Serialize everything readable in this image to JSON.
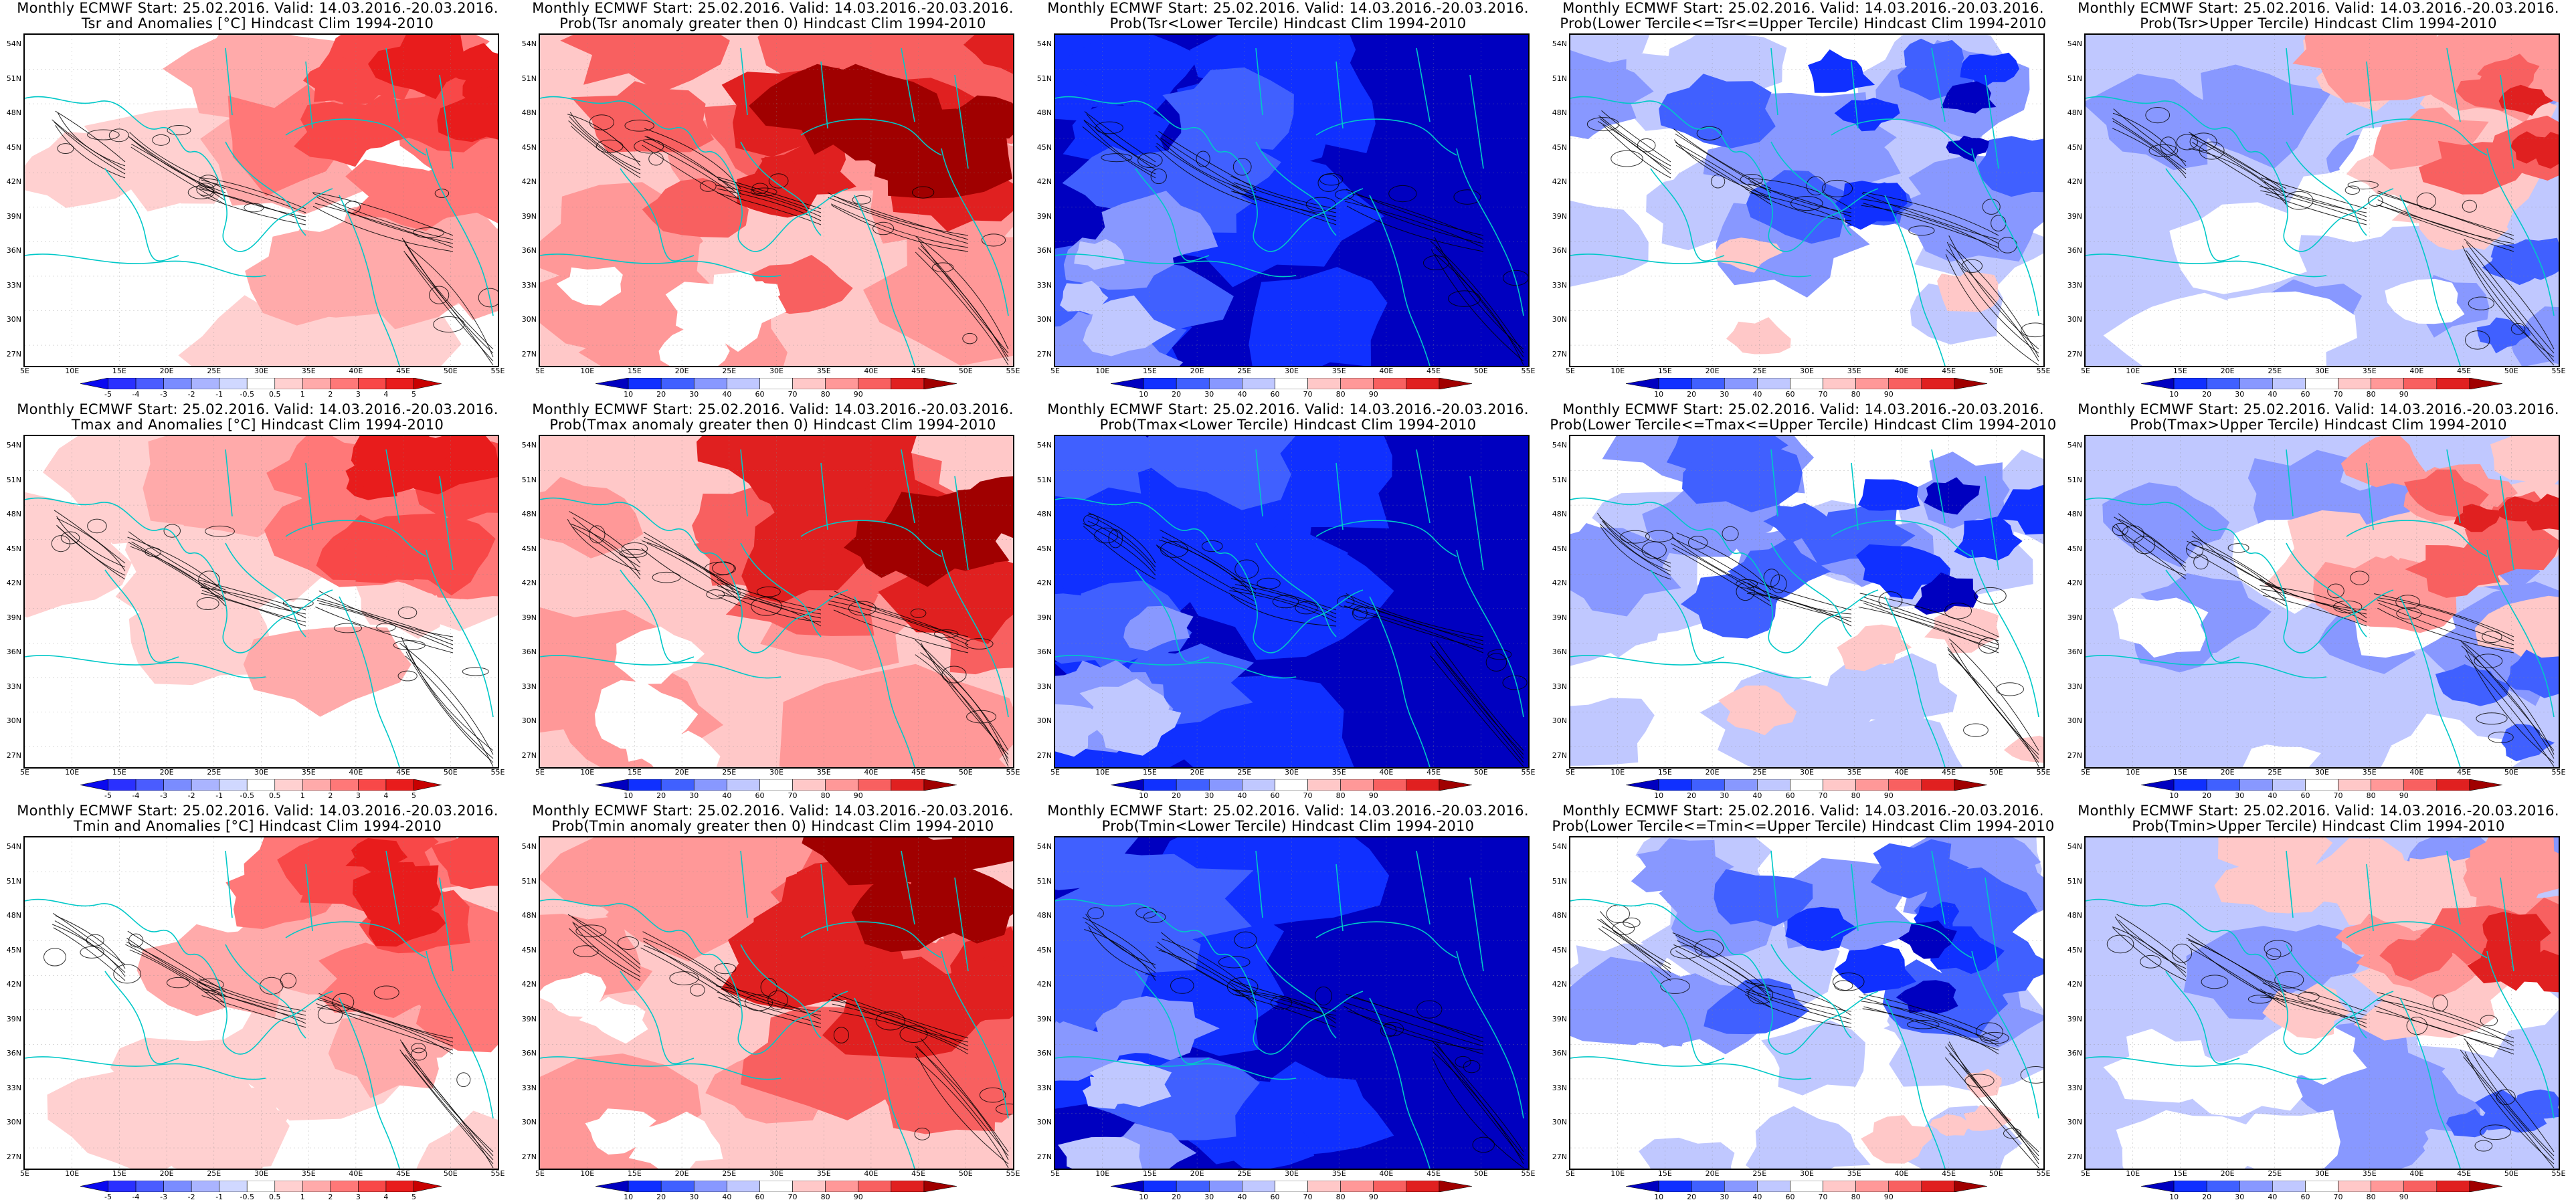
{
  "panels": [
    {
      "line1": "Monthly ECMWF Start: 25.02.2016. Valid: 14.03.2016.-20.03.2016.",
      "line2": "Tsr and Anomalies [°C] Hindcast Clim 1994-2010",
      "scheme": "anom"
    },
    {
      "line1": "Monthly ECMWF Start: 25.02.2016. Valid: 14.03.2016.-20.03.2016.",
      "line2": "Prob(Tsr anomaly greater then 0) Hindcast Clim 1994-2010",
      "scheme": "prob_hi"
    },
    {
      "line1": "Monthly ECMWF Start: 25.02.2016. Valid: 14.03.2016.-20.03.2016.",
      "line2": "Prob(Tsr<Lower Tercile) Hindcast Clim 1994-2010",
      "scheme": "blue_full"
    },
    {
      "line1": "Monthly ECMWF Start: 25.02.2016. Valid: 14.03.2016.-20.03.2016.",
      "line2": "Prob(Lower Tercile<=Tsr<=Upper Tercile) Hindcast Clim 1994-2010",
      "scheme": "mixed_blue"
    },
    {
      "line1": "Monthly ECMWF Start: 25.02.2016. Valid: 14.03.2016.-20.03.2016.",
      "line2": "Prob(Tsr>Upper Tercile) Hindcast Clim 1994-2010",
      "scheme": "upper"
    },
    {
      "line1": "Monthly ECMWF Start: 25.02.2016. Valid: 14.03.2016.-20.03.2016.",
      "line2": "Tmax and Anomalies [°C] Hindcast Clim 1994-2010",
      "scheme": "anom"
    },
    {
      "line1": "Monthly ECMWF Start: 25.02.2016. Valid: 14.03.2016.-20.03.2016.",
      "line2": "Prob(Tmax anomaly greater then 0) Hindcast Clim 1994-2010",
      "scheme": "prob_hi"
    },
    {
      "line1": "Monthly ECMWF Start: 25.02.2016. Valid: 14.03.2016.-20.03.2016.",
      "line2": "Prob(Tmax<Lower Tercile) Hindcast Clim 1994-2010",
      "scheme": "blue_full"
    },
    {
      "line1": "Monthly ECMWF Start: 25.02.2016. Valid: 14.03.2016.-20.03.2016.",
      "line2": "Prob(Lower Tercile<=Tmax<=Upper Tercile) Hindcast Clim 1994-2010",
      "scheme": "mixed_blue"
    },
    {
      "line1": "Monthly ECMWF Start: 25.02.2016. Valid: 14.03.2016.-20.03.2016.",
      "line2": "Prob(Tmax>Upper Tercile) Hindcast Clim 1994-2010",
      "scheme": "upper"
    },
    {
      "line1": "Monthly ECMWF Start: 25.02.2016. Valid: 14.03.2016.-20.03.2016.",
      "line2": "Tmin and Anomalies [°C] Hindcast Clim 1994-2010",
      "scheme": "anom"
    },
    {
      "line1": "Monthly ECMWF Start: 25.02.2016. Valid: 14.03.2016.-20.03.2016.",
      "line2": "Prob(Tmin anomaly greater then 0) Hindcast Clim 1994-2010",
      "scheme": "prob_hi"
    },
    {
      "line1": "Monthly ECMWF Start: 25.02.2016. Valid: 14.03.2016.-20.03.2016.",
      "line2": "Prob(Tmin<Lower Tercile) Hindcast Clim 1994-2010",
      "scheme": "blue_full"
    },
    {
      "line1": "Monthly ECMWF Start: 25.02.2016. Valid: 14.03.2016.-20.03.2016.",
      "line2": "Prob(Lower Tercile<=Tmin<=Upper Tercile) Hindcast Clim 1994-2010",
      "scheme": "mixed_blue"
    },
    {
      "line1": "Monthly ECMWF Start: 25.02.2016. Valid: 14.03.2016.-20.03.2016.",
      "line2": "Prob(Tmin>Upper Tercile) Hindcast Clim 1994-2010",
      "scheme": "upper"
    }
  ],
  "lat_labels": [
    "54N",
    "51N",
    "48N",
    "45N",
    "42N",
    "39N",
    "36N",
    "33N",
    "30N",
    "27N"
  ],
  "lon_labels": [
    "5E",
    "10E",
    "15E",
    "20E",
    "25E",
    "30E",
    "35E",
    "40E",
    "45E",
    "50E",
    "55E"
  ],
  "anom_ticks": [
    "-5",
    "-4",
    "-3",
    "-2",
    "-1",
    "-0.5",
    "0.5",
    "1",
    "2",
    "3",
    "4",
    "5"
  ],
  "prob_ticks": [
    "10",
    "20",
    "30",
    "40",
    "60",
    "70",
    "80",
    "90"
  ],
  "anom_colors": [
    "#0a0af0",
    "#2a30ff",
    "#4a5cff",
    "#7a8cff",
    "#aab4ff",
    "#d0d8ff",
    "#ffffff",
    "#ffd0d0",
    "#ffaaaa",
    "#ff7878",
    "#f84848",
    "#e81c1c",
    "#c80000"
  ],
  "prob_colors": [
    "#0000c0",
    "#1030ff",
    "#4060ff",
    "#8898ff",
    "#c0c8ff",
    "#ffffff",
    "#ffc8c8",
    "#ff9898",
    "#f86060",
    "#e02020",
    "#a00000"
  ],
  "contour_color": "#000000",
  "border_color": "#00c8c8"
}
